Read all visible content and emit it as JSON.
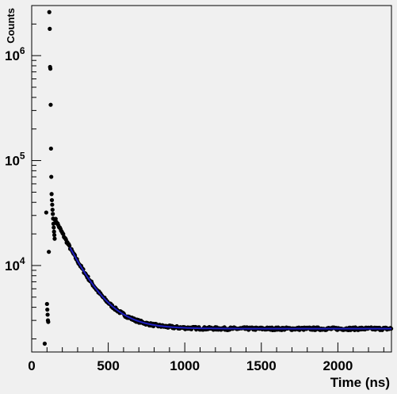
{
  "chart_data": {
    "type": "scatter",
    "title": "",
    "xlabel": "Time (ns)",
    "ylabel": "Counts",
    "xlim": [
      0,
      2350
    ],
    "ylim": [
      1500,
      3000000
    ],
    "yscale": "log",
    "x_ticks": [
      0,
      500,
      1000,
      1500,
      2000
    ],
    "x_tick_labels": [
      "0",
      "500",
      "1000",
      "1500",
      "2000"
    ],
    "y_ticks": [
      {
        "value": 10000,
        "base": "10",
        "exp": "4"
      },
      {
        "value": 100000,
        "base": "10",
        "exp": "5"
      },
      {
        "value": 1000000,
        "base": "10",
        "exp": "6"
      }
    ],
    "grid": false,
    "colors": {
      "background": "#f0f0f0",
      "points": "#000000",
      "fit": "#1f1fbf"
    },
    "series": [
      {
        "name": "",
        "kind": "points",
        "x": [
          85,
          95,
          100,
          102,
          104,
          106,
          108,
          112,
          115,
          118,
          120,
          122,
          124,
          126,
          128,
          130,
          132,
          134,
          136,
          138,
          140,
          142,
          144,
          146,
          148,
          150
        ],
        "y": [
          1800,
          32000,
          4300,
          3800,
          3400,
          3000,
          2900,
          13500,
          2600000,
          1800000,
          780000,
          750000,
          340000,
          130000,
          70000,
          48000,
          42000,
          38000,
          34000,
          31000,
          28000,
          25000,
          23000,
          21000,
          19500,
          18000
        ]
      },
      {
        "name": "",
        "kind": "fit",
        "model": "exp_decay_plus_constant",
        "amplitude": 30000,
        "tau_ns": 135,
        "t0_ns": 130,
        "constant": 2500,
        "x_range": [
          130,
          2350
        ]
      }
    ]
  }
}
